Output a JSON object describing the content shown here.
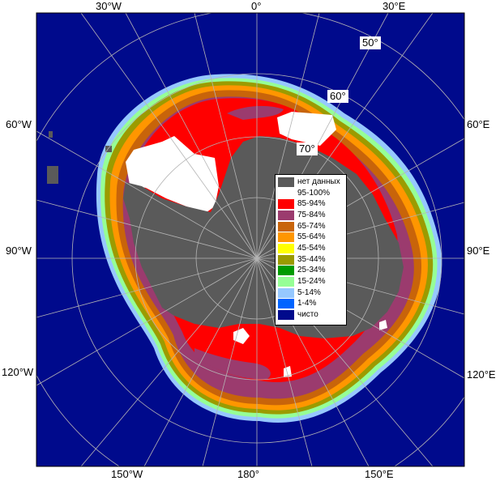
{
  "map": {
    "colors": {
      "ocean": "#000a8c",
      "land": "#5a5a5a",
      "grid": "#b4b4b4",
      "frame_bg": "#ffffff"
    },
    "longitude_labels": {
      "top_left": "30°W",
      "top_center": "0°",
      "top_right": "30°E",
      "left_upper": "60°W",
      "left_middle": "90°W",
      "left_lower": "120°W",
      "right_upper": "60°E",
      "right_middle": "90°E",
      "right_lower": "120°E",
      "bottom_left": "150°W",
      "bottom_center": "180°",
      "bottom_right": "150°E"
    },
    "latitude_labels": {
      "lat50": "50°",
      "lat60": "60°",
      "lat70": "70°"
    }
  },
  "legend": {
    "items": [
      {
        "label": "нет данных",
        "color": "#5a5a5a"
      },
      {
        "label": "95-100%",
        "color": "#ffffff"
      },
      {
        "label": "85-94%",
        "color": "#ff0000"
      },
      {
        "label": "75-84%",
        "color": "#9b3b6e"
      },
      {
        "label": "65-74%",
        "color": "#c8640a"
      },
      {
        "label": "55-64%",
        "color": "#ff9600"
      },
      {
        "label": "45-54%",
        "color": "#ffff00"
      },
      {
        "label": "35-44%",
        "color": "#9b9b00"
      },
      {
        "label": "25-34%",
        "color": "#009b00"
      },
      {
        "label": "15-24%",
        "color": "#96ff96"
      },
      {
        "label": "5-14%",
        "color": "#96c8ff"
      },
      {
        "label": "1-4%",
        "color": "#0064ff"
      },
      {
        "label": "чисто",
        "color": "#000a8c"
      }
    ]
  }
}
